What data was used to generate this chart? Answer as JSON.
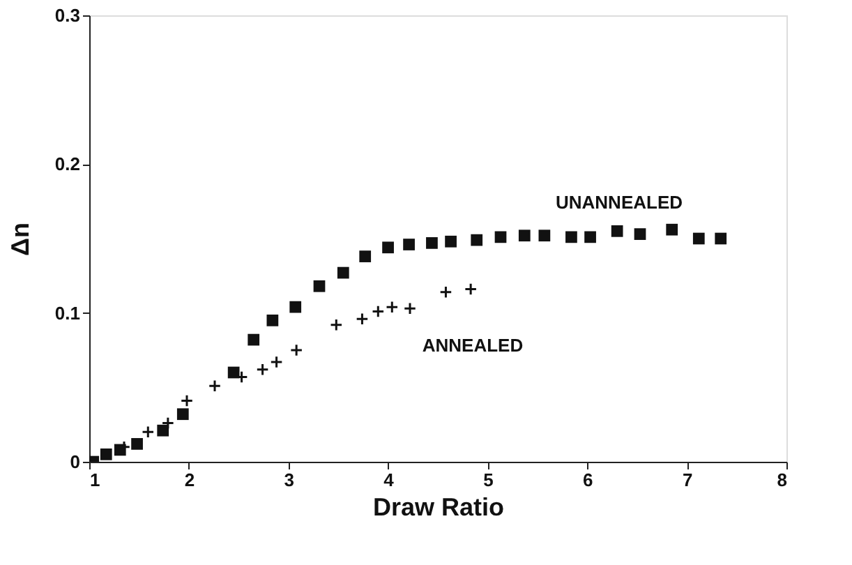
{
  "chart_data": {
    "type": "scatter",
    "xlabel": "Draw Ratio",
    "ylabel": "Δn",
    "xlim": [
      1,
      8
    ],
    "ylim": [
      0,
      0.3
    ],
    "xticks": [
      1,
      2,
      3,
      4,
      5,
      6,
      7,
      8
    ],
    "yticks": [
      0,
      0.1,
      0.2,
      0.3
    ],
    "grid": false,
    "series": [
      {
        "name": "UNANNEALED",
        "color": "#111111",
        "marker": "square",
        "x": [
          1.04,
          1.17,
          1.31,
          1.48,
          1.74,
          1.94,
          2.45,
          2.65,
          2.84,
          3.07,
          3.31,
          3.55,
          3.77,
          4.0,
          4.21,
          4.44,
          4.63,
          4.89,
          5.13,
          5.37,
          5.57,
          5.84,
          6.03,
          6.3,
          6.53,
          6.85,
          7.12,
          7.34
        ],
        "values": [
          0.0,
          0.005,
          0.008,
          0.012,
          0.021,
          0.032,
          0.06,
          0.082,
          0.095,
          0.104,
          0.118,
          0.127,
          0.138,
          0.144,
          0.146,
          0.147,
          0.148,
          0.149,
          0.151,
          0.152,
          0.152,
          0.151,
          0.151,
          0.155,
          0.153,
          0.156,
          0.15,
          0.15
        ]
      },
      {
        "name": "ANNEALED",
        "color": "#111111",
        "marker": "cross",
        "x": [
          1.35,
          1.59,
          1.79,
          1.98,
          2.26,
          2.53,
          2.74,
          2.88,
          3.08,
          3.48,
          3.74,
          3.9,
          4.04,
          4.22,
          4.58,
          4.83
        ],
        "values": [
          0.01,
          0.02,
          0.026,
          0.041,
          0.051,
          0.057,
          0.062,
          0.067,
          0.075,
          0.092,
          0.096,
          0.101,
          0.104,
          0.103,
          0.114,
          0.116
        ]
      }
    ]
  }
}
